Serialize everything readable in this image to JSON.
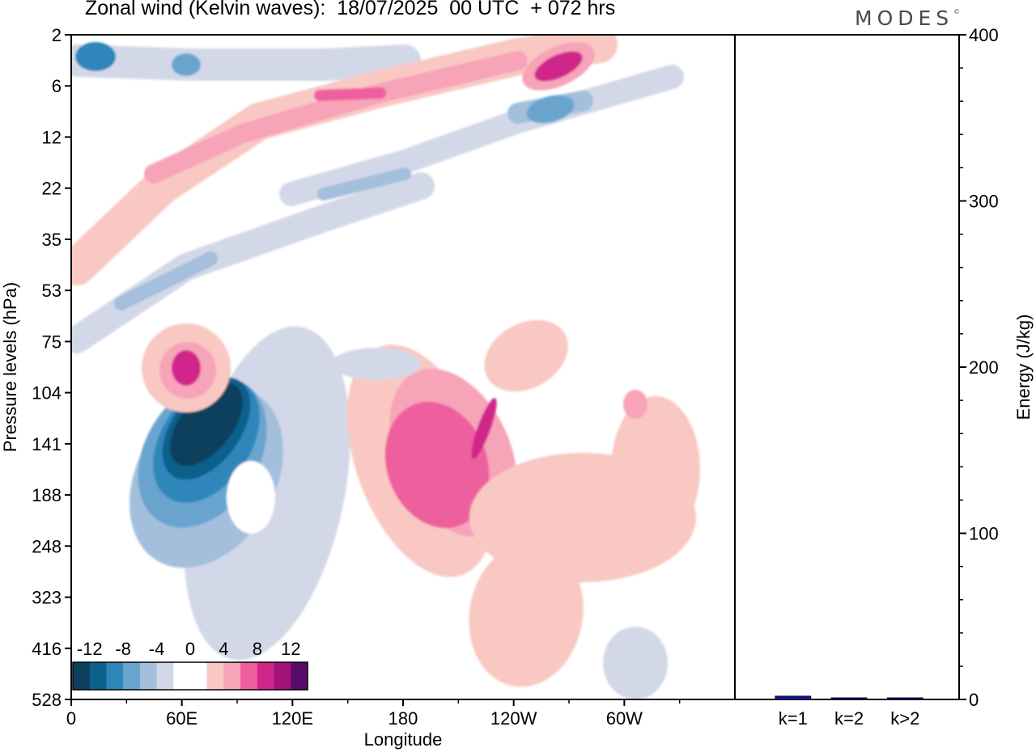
{
  "title": "Zonal wind (Kelvin waves):  18/07/2025  00 UTC  + 072 hrs",
  "brand": "MODES",
  "brand_mark": "©",
  "colors": {
    "neg_levels": [
      "#0b3f5c",
      "#0d5f8c",
      "#2f86bb",
      "#69a4cf",
      "#a3bfdc",
      "#d3d8e8"
    ],
    "pos_levels": [
      "#f9c8c2",
      "#f7a3b8",
      "#ee5f9e",
      "#d0268a",
      "#a4127a",
      "#5a0a6b"
    ],
    "bar": "#1414a0"
  },
  "chart_data": [
    {
      "type": "heatmap",
      "title": "Zonal wind (Kelvin waves):  18/07/2025  00 UTC  + 072 hrs",
      "xlabel": "Longitude",
      "ylabel": "Pressure levels (hPa)",
      "x_ticks": [
        "0",
        "60E",
        "120E",
        "180",
        "120W",
        "60W"
      ],
      "x_tick_values": [
        0,
        60,
        120,
        180,
        240,
        300
      ],
      "xlim": [
        0,
        360
      ],
      "y_ticks": [
        "2",
        "6",
        "12",
        "22",
        "35",
        "53",
        "75",
        "104",
        "141",
        "188",
        "248",
        "323",
        "416",
        "528"
      ],
      "y_axis_reversed": true,
      "colorbar": {
        "labels": [
          "-12",
          "-8",
          "-4",
          "0",
          "4",
          "8",
          "12"
        ],
        "levels": [
          -14,
          -12,
          -10,
          -8,
          -6,
          -4,
          -2,
          0,
          2,
          4,
          6,
          8,
          10,
          12,
          14
        ]
      },
      "features": [
        {
          "lon": 72,
          "level_index": 8.5,
          "value": -14,
          "desc": "strong easterly core"
        },
        {
          "lon": 200,
          "level_index": 8.5,
          "value": 9,
          "desc": "westerly core"
        },
        {
          "lon": 65,
          "level_index": 6.6,
          "value": 10
        },
        {
          "lon": 250,
          "level_index": 0.7,
          "value": 11
        },
        {
          "lon": 150,
          "level_index": 1.2,
          "value": 8
        },
        {
          "lon": 250,
          "level_index": 1.6,
          "value": -9
        },
        {
          "lon": 100,
          "level_index": 1.0,
          "value": -7
        },
        {
          "lon": 15,
          "level_index": 0.3,
          "value": -8
        }
      ],
      "grid": false
    },
    {
      "type": "bar",
      "ylabel": "Energy (J/kg)",
      "categories": [
        "k=1",
        "k=2",
        "k>2"
      ],
      "values": [
        2,
        1,
        1
      ],
      "ylim": [
        0,
        400
      ],
      "y_ticks": [
        "0",
        "100",
        "200",
        "300",
        "400"
      ],
      "grid": false
    }
  ]
}
